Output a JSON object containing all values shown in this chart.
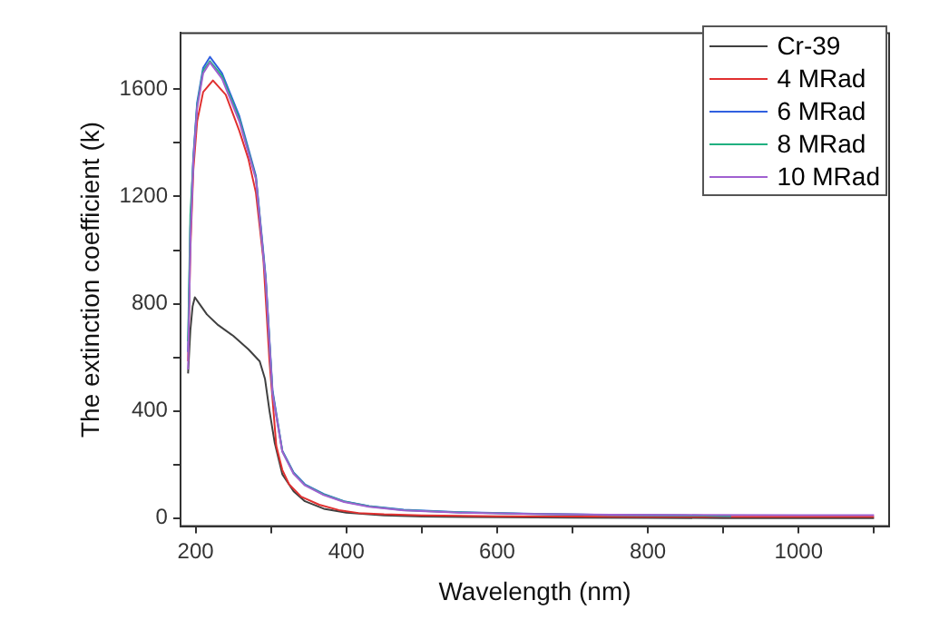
{
  "chart_data": {
    "type": "line",
    "xlabel": "Wavelength (nm)",
    "ylabel": "The extinction coefficient (k)",
    "xlim": [
      180,
      1120
    ],
    "ylim": [
      -30,
      1810
    ],
    "xticks": [
      200,
      {
        "value": 300,
        "label": null
      },
      400,
      {
        "value": 500,
        "label": null
      },
      600,
      {
        "value": 700,
        "label": null
      },
      800,
      {
        "value": 900,
        "label": null
      },
      1000,
      {
        "value": 1100,
        "label": null
      }
    ],
    "yticks": [
      0,
      {
        "value": 200,
        "label": null
      },
      400,
      {
        "value": 600,
        "label": null
      },
      800,
      {
        "value": 1000,
        "label": null
      },
      1200,
      {
        "value": 1400,
        "label": null
      },
      1600
    ],
    "grid": false,
    "legend": "top right",
    "marker": "none",
    "line_style": "solid",
    "series": [
      {
        "name": "Cr-39",
        "color": "#404040",
        "x": [
          190,
          193,
          196,
          199,
          205,
          215,
          230,
          250,
          270,
          285,
          292,
          298,
          305,
          315,
          330,
          345,
          370,
          400,
          450,
          500,
          600,
          700,
          800,
          900,
          1000,
          1100
        ],
        "values": [
          540,
          700,
          790,
          824,
          800,
          760,
          720,
          680,
          630,
          585,
          520,
          400,
          280,
          164,
          100,
          63,
          35,
          20,
          10,
          6,
          3,
          2,
          1,
          0,
          0,
          0
        ]
      },
      {
        "name": "4 MRad",
        "color": "#e03030",
        "x": [
          190,
          193,
          197,
          202,
          210,
          223,
          240,
          258,
          270,
          280,
          290,
          298,
          307,
          315,
          324,
          340,
          364,
          390,
          416,
          450,
          500,
          600,
          700,
          800,
          900,
          1000,
          1100
        ],
        "values": [
          585,
          1000,
          1300,
          1480,
          1590,
          1633,
          1580,
          1445,
          1340,
          1214,
          962,
          585,
          270,
          180,
          126,
          80,
          50,
          30,
          19,
          14,
          10,
          7,
          6,
          5,
          5,
          5,
          5
        ]
      },
      {
        "name": "6 MRad",
        "color": "#3060e0",
        "x": [
          190,
          193,
          197,
          202,
          210,
          219,
          235,
          258,
          280,
          293,
          302,
          315,
          330,
          345,
          370,
          397,
          430,
          476,
          550,
          650,
          750,
          850,
          910
        ],
        "values": [
          620,
          1080,
          1350,
          1550,
          1680,
          1721,
          1660,
          1500,
          1277,
          900,
          478,
          252,
          170,
          126,
          90,
          63,
          45,
          31,
          22,
          16,
          12,
          10,
          8
        ]
      },
      {
        "name": "8 MRad",
        "color": "#20b080",
        "x": [
          190,
          193,
          197,
          202,
          210,
          219,
          235,
          258,
          280,
          293,
          302,
          315,
          330,
          345,
          370,
          397,
          430,
          476,
          550,
          650,
          750,
          850,
          910
        ],
        "values": [
          660,
          1130,
          1340,
          1540,
          1670,
          1705,
          1650,
          1490,
          1270,
          890,
          470,
          250,
          168,
          124,
          88,
          62,
          44,
          30,
          21,
          15,
          12,
          10,
          8
        ]
      },
      {
        "name": "10 MRad",
        "color": "#a060d0",
        "x": [
          190,
          193,
          197,
          202,
          210,
          219,
          235,
          258,
          280,
          293,
          302,
          315,
          330,
          345,
          370,
          397,
          430,
          476,
          550,
          650,
          750,
          850,
          1000,
          1100
        ],
        "values": [
          555,
          1030,
          1330,
          1530,
          1660,
          1700,
          1640,
          1480,
          1265,
          885,
          465,
          248,
          165,
          122,
          86,
          60,
          42,
          29,
          20,
          15,
          13,
          12,
          11,
          11
        ]
      }
    ]
  }
}
